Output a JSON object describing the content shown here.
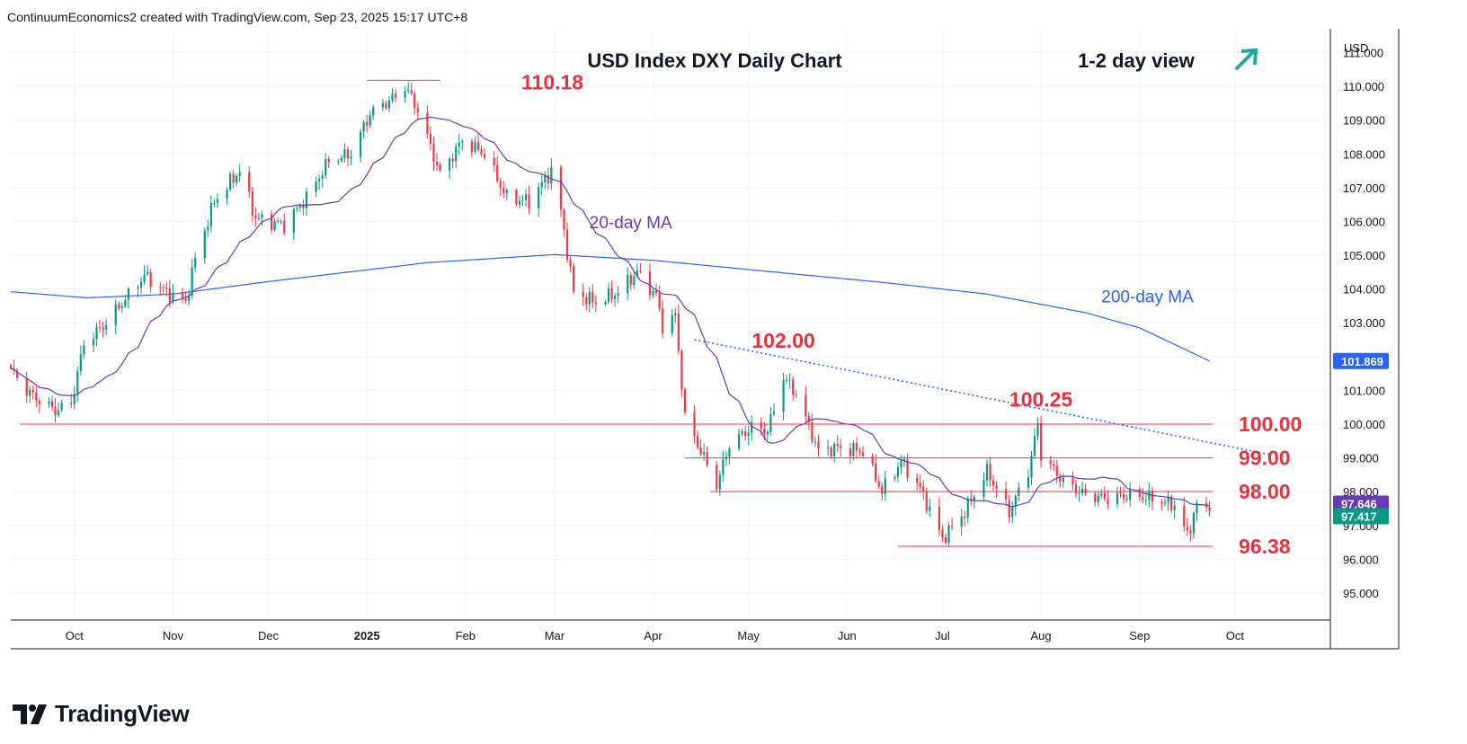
{
  "header": {
    "attribution": "ContinuumEconomics2 created with TradingView.com, Sep 23, 2025 15:17 UTC+8"
  },
  "brand": {
    "name": "TradingView",
    "logo_icon": "tradingview-logo-icon"
  },
  "colors": {
    "up": "#089981",
    "down": "#f23645",
    "ma200": "#2962ff",
    "ma20": "#673ab7",
    "level": "#f23645",
    "annotation": "#e8313e",
    "arrow": "#22ab94",
    "trendline": "#2962ff"
  },
  "chart_data": {
    "type": "candlestick",
    "title": "USD Index DXY Daily Chart",
    "view_label": "1-2 day view",
    "view_icon": "up-right-arrow-icon",
    "currency_label": "USD",
    "ylim": [
      94.2,
      111.6
    ],
    "x_start": "2024-09-11",
    "x_end": "2025-10-31",
    "y_ticks": [
      "95.000",
      "96.000",
      "97.000",
      "98.000",
      "99.000",
      "100.000",
      "101.000",
      "102.000",
      "103.000",
      "104.000",
      "105.000",
      "106.000",
      "107.000",
      "108.000",
      "109.000",
      "110.000",
      "111.000"
    ],
    "x_ticks": [
      {
        "label": "Oct",
        "date": "2024-10-01",
        "bold": false
      },
      {
        "label": "Nov",
        "date": "2024-11-01",
        "bold": false
      },
      {
        "label": "Dec",
        "date": "2024-12-01",
        "bold": false
      },
      {
        "label": "2025",
        "date": "2025-01-01",
        "bold": true
      },
      {
        "label": "Feb",
        "date": "2025-02-01",
        "bold": false
      },
      {
        "label": "Mar",
        "date": "2025-03-01",
        "bold": false
      },
      {
        "label": "Apr",
        "date": "2025-04-01",
        "bold": false
      },
      {
        "label": "May",
        "date": "2025-05-01",
        "bold": false
      },
      {
        "label": "Jun",
        "date": "2025-06-01",
        "bold": false
      },
      {
        "label": "Jul",
        "date": "2025-07-01",
        "bold": false
      },
      {
        "label": "Aug",
        "date": "2025-08-01",
        "bold": false
      },
      {
        "label": "Sep",
        "date": "2025-09-01",
        "bold": false
      },
      {
        "label": "Oct",
        "date": "2025-10-01",
        "bold": false
      }
    ],
    "anchors": [
      [
        "2024-09-11",
        101.6
      ],
      [
        "2024-09-17",
        100.9
      ],
      [
        "2024-09-25",
        100.4
      ],
      [
        "2024-09-30",
        100.6
      ],
      [
        "2024-10-04",
        102.4
      ],
      [
        "2024-10-10",
        102.9
      ],
      [
        "2024-10-17",
        103.7
      ],
      [
        "2024-10-23",
        104.4
      ],
      [
        "2024-10-30",
        103.9
      ],
      [
        "2024-11-05",
        103.6
      ],
      [
        "2024-11-08",
        104.9
      ],
      [
        "2024-11-14",
        106.6
      ],
      [
        "2024-11-22",
        107.5
      ],
      [
        "2024-11-27",
        106.1
      ],
      [
        "2024-12-06",
        105.9
      ],
      [
        "2024-12-13",
        106.7
      ],
      [
        "2024-12-20",
        107.8
      ],
      [
        "2024-12-27",
        108.0
      ],
      [
        "2025-01-02",
        109.2
      ],
      [
        "2025-01-10",
        109.7
      ],
      [
        "2025-01-13",
        110.0
      ],
      [
        "2025-01-17",
        109.3
      ],
      [
        "2025-01-24",
        107.4
      ],
      [
        "2025-01-31",
        108.4
      ],
      [
        "2025-02-07",
        108.0
      ],
      [
        "2025-02-14",
        106.7
      ],
      [
        "2025-02-21",
        106.6
      ],
      [
        "2025-02-28",
        107.5
      ],
      [
        "2025-03-03",
        106.3
      ],
      [
        "2025-03-07",
        103.9
      ],
      [
        "2025-03-14",
        103.6
      ],
      [
        "2025-03-21",
        103.9
      ],
      [
        "2025-03-27",
        104.5
      ],
      [
        "2025-04-02",
        103.8
      ],
      [
        "2025-04-04",
        102.9
      ],
      [
        "2025-04-08",
        103.2
      ],
      [
        "2025-04-11",
        100.2
      ],
      [
        "2025-04-21",
        98.2
      ],
      [
        "2025-04-25",
        99.4
      ],
      [
        "2025-05-02",
        99.9
      ],
      [
        "2025-05-07",
        99.8
      ],
      [
        "2025-05-12",
        101.4
      ],
      [
        "2025-05-16",
        100.9
      ],
      [
        "2025-05-23",
        99.2
      ],
      [
        "2025-05-29",
        99.3
      ],
      [
        "2025-06-06",
        99.2
      ],
      [
        "2025-06-12",
        98.0
      ],
      [
        "2025-06-18",
        98.9
      ],
      [
        "2025-06-24",
        98.1
      ],
      [
        "2025-07-01",
        96.6
      ],
      [
        "2025-07-08",
        97.4
      ],
      [
        "2025-07-15",
        98.6
      ],
      [
        "2025-07-22",
        97.4
      ],
      [
        "2025-07-28",
        98.6
      ],
      [
        "2025-07-31",
        100.0
      ],
      [
        "2025-08-01",
        99.1
      ],
      [
        "2025-08-08",
        98.3
      ],
      [
        "2025-08-15",
        97.9
      ],
      [
        "2025-08-22",
        97.8
      ],
      [
        "2025-08-29",
        97.9
      ],
      [
        "2025-09-05",
        97.8
      ],
      [
        "2025-09-12",
        97.6
      ],
      [
        "2025-09-16",
        96.7
      ],
      [
        "2025-09-19",
        97.6
      ],
      [
        "2025-09-23",
        97.417
      ]
    ],
    "last_price": "97.417",
    "price_tags": [
      {
        "label": "101.869",
        "value": 101.869
      },
      {
        "label": "97.646",
        "value": 97.646
      },
      {
        "label": "97.417",
        "value": 97.417
      }
    ],
    "moving_averages": [
      {
        "name": "20-day MA",
        "period": 20
      },
      {
        "name": "200-day MA",
        "period": 200
      }
    ],
    "ma200_anchors": [
      [
        "2024-09-11",
        103.92
      ],
      [
        "2024-10-05",
        103.74
      ],
      [
        "2024-11-01",
        103.85
      ],
      [
        "2024-12-01",
        104.22
      ],
      [
        "2025-01-20",
        104.78
      ],
      [
        "2025-03-01",
        105.02
      ],
      [
        "2025-04-01",
        104.85
      ],
      [
        "2025-05-15",
        104.45
      ],
      [
        "2025-06-15",
        104.17
      ],
      [
        "2025-07-15",
        103.85
      ],
      [
        "2025-08-15",
        103.3
      ],
      [
        "2025-09-01",
        102.85
      ],
      [
        "2025-09-23",
        101.87
      ]
    ],
    "levels": [
      {
        "value": 110.18,
        "label": "110.18",
        "from": "2025-01-01",
        "to": "2025-01-24"
      },
      {
        "value": 100.0,
        "label": "100.00",
        "from": "2024-09-14",
        "to": "2025-09-24"
      },
      {
        "value": 99.0,
        "label": "99.00",
        "from": "2025-04-11",
        "to": "2025-09-24"
      },
      {
        "value": 98.0,
        "label": "98.00",
        "from": "2025-04-19",
        "to": "2025-09-24"
      },
      {
        "value": 96.38,
        "label": "96.38",
        "from": "2025-06-17",
        "to": "2025-09-24"
      }
    ],
    "annotations": [
      {
        "label": "102.00",
        "date": "2025-05-12",
        "value": 102.0
      },
      {
        "label": "100.25",
        "date": "2025-08-01",
        "value": 100.25
      }
    ],
    "trendline": {
      "from": [
        "2025-04-14",
        102.5
      ],
      "to": [
        "2025-10-12",
        99.1
      ]
    },
    "ma_labels": [
      {
        "text": "20-day MA",
        "date": "2025-03-12",
        "value": 105.8
      },
      {
        "text": "200-day MA",
        "date": "2025-08-20",
        "value": 103.6
      }
    ]
  }
}
